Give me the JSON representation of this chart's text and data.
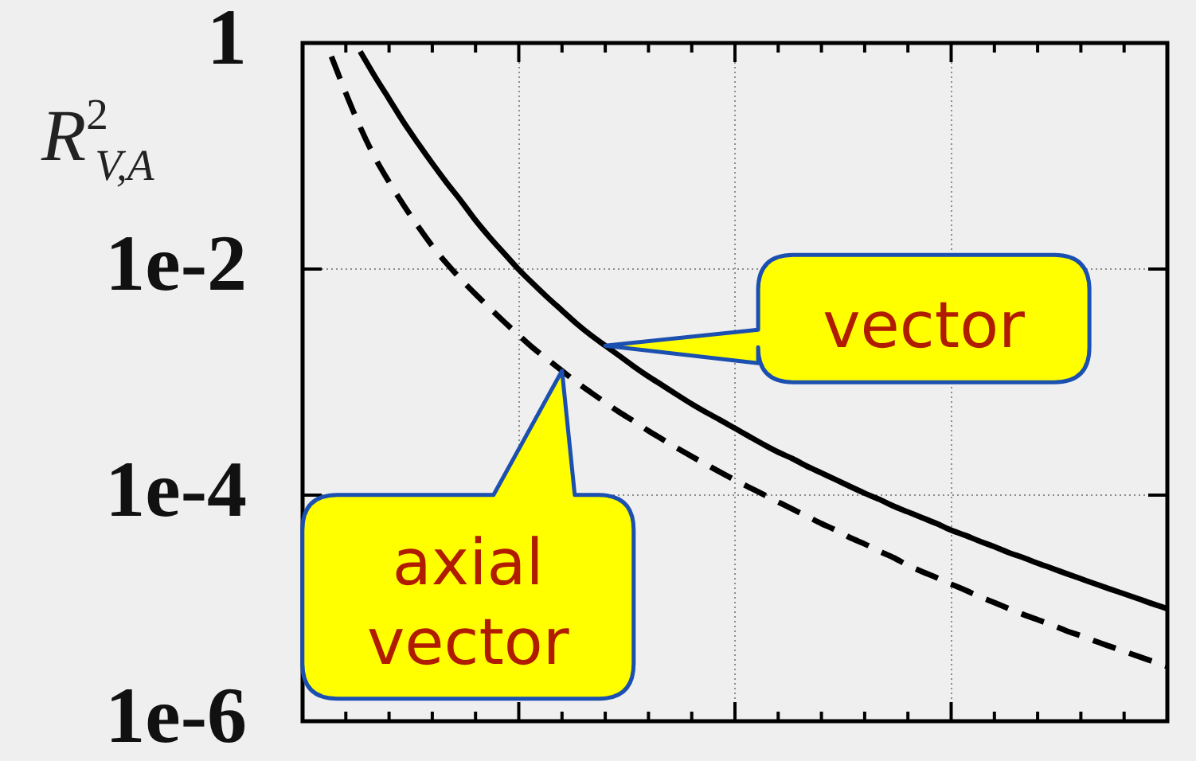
{
  "chart_data": {
    "type": "line",
    "ylabel": "R$^{2}$$_{V,A}$",
    "categories": [
      null,
      null,
      null,
      null,
      null,
      null,
      null,
      null,
      null,
      null,
      null,
      null,
      null,
      null,
      null,
      null,
      null,
      null,
      null,
      null,
      null,
      null,
      null,
      null,
      null,
      null,
      null,
      null,
      null,
      null,
      null,
      null,
      null,
      null,
      null,
      null,
      null,
      null,
      null,
      null,
      null,
      null,
      null,
      null,
      null,
      null,
      null,
      null,
      null,
      null,
      null,
      null,
      null,
      null,
      null,
      null,
      null,
      null,
      null,
      null,
      null
    ],
    "series": [
      {
        "name": "vector",
        "color": "#000000",
        "line_style": "solid",
        "values": [
          null,
          null,
          null,
          null,
          0.84,
          0.51,
          0.32,
          0.2,
          0.13,
          0.086,
          0.058,
          0.04,
          0.027,
          0.019,
          0.0137,
          0.0099,
          0.0074,
          0.0056,
          0.0043,
          0.0033,
          0.0026,
          0.0021,
          0.0017,
          0.00137,
          0.00112,
          0.00093,
          0.00077,
          0.00064,
          0.00054,
          0.00046,
          0.00039,
          0.00033,
          0.00028,
          0.00024,
          0.00021,
          0.00018,
          0.000157,
          0.000137,
          0.000119,
          0.000104,
          9.2e-05,
          8e-05,
          7.1e-05,
          6.3e-05,
          5.6e-05,
          4.9e-05,
          4.4e-05,
          3.9e-05,
          3.5e-05,
          3.1e-05,
          2.8e-05,
          2.5e-05,
          2.25e-05,
          2.02e-05,
          1.82e-05,
          1.64e-05,
          1.48e-05,
          1.34e-05,
          1.21e-05,
          1.09e-05,
          9.9e-06
        ]
      },
      {
        "name": "axial vector",
        "color": "#000000",
        "line_style": "dashed",
        "values": [
          null,
          null,
          0.76,
          0.36,
          0.18,
          0.098,
          0.059,
          0.037,
          0.024,
          0.016,
          0.0112,
          0.0081,
          0.006,
          0.0045,
          0.0034,
          0.0026,
          0.002,
          0.00159,
          0.00126,
          0.001,
          0.00081,
          0.00066,
          0.00054,
          0.00045,
          0.00037,
          0.00031,
          0.00026,
          0.00022,
          0.000187,
          0.000159,
          0.000136,
          0.000117,
          0.000101,
          8.7e-05,
          7.5e-05,
          6.5e-05,
          5.6e-05,
          4.9e-05,
          4.2e-05,
          3.7e-05,
          3.2e-05,
          2.8e-05,
          2.4e-05,
          2.1e-05,
          1.86e-05,
          1.63e-05,
          1.44e-05,
          1.26e-05,
          1.12e-05,
          9.9e-06,
          8.8e-06,
          7.9e-06,
          7.1e-06,
          6.3e-06,
          5.7e-06,
          5.1e-06,
          4.6e-06,
          4.15e-06,
          3.74e-06,
          3.38e-06,
          3.05e-06
        ]
      }
    ],
    "log": true,
    "ylim": [
      1e-06,
      1
    ],
    "yticks": [
      1,
      {
        "value": 0.01,
        "label": "1e-2"
      },
      {
        "value": 0.0001,
        "label": "1e-4"
      },
      {
        "value": 1e-06,
        "label": "1e-6"
      }
    ],
    "grid": true,
    "legend": false,
    "marker": "none",
    "tick_labels": "y"
  }
}
